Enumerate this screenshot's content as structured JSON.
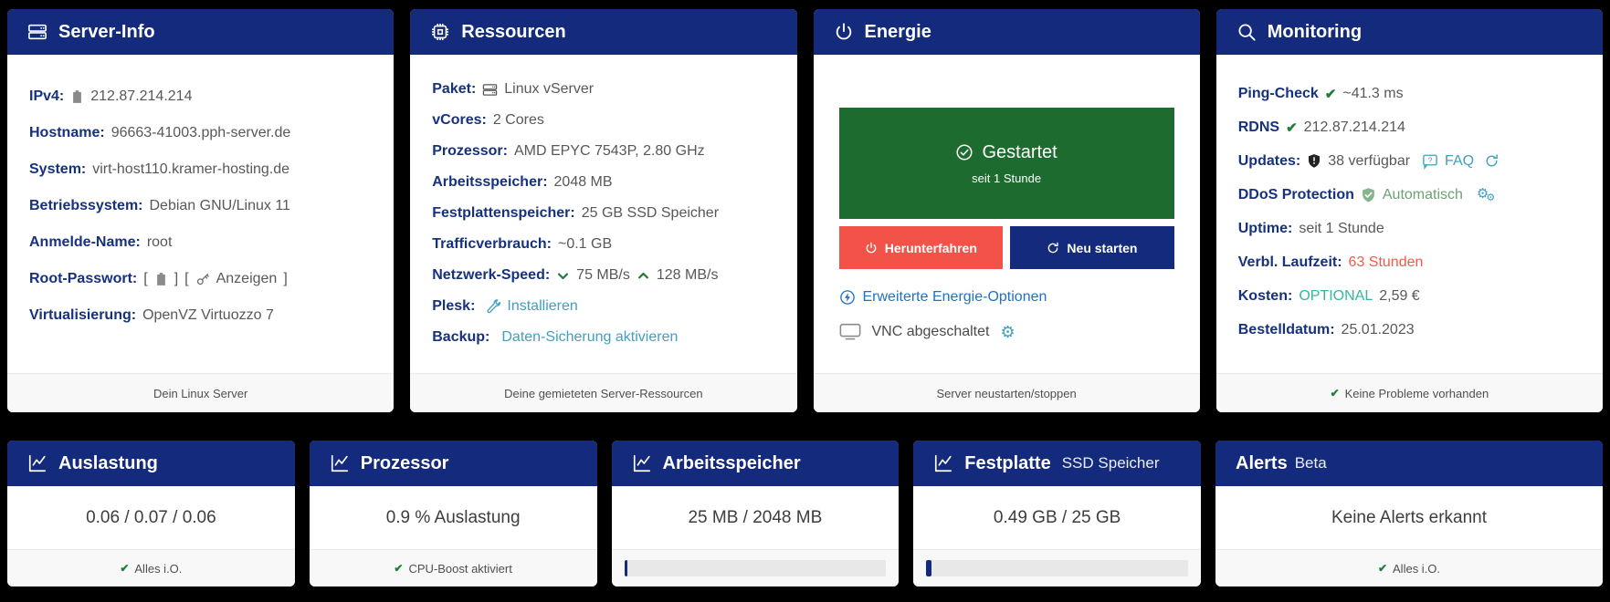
{
  "colors": {
    "header_navy": "#132a7d",
    "label_navy": "#16317d",
    "teal_link": "#3fa0bf",
    "blue_link": "#2271c3",
    "success_green": "#1e7e34",
    "status_box_green": "#1e6b2f",
    "danger_red": "#f25247",
    "warning_red": "#f2594b",
    "optional_teal": "#35b79b"
  },
  "top_cards": {
    "server_info": {
      "title": "Server-Info",
      "icon": "server-stack-icon",
      "rows": [
        {
          "label": "IPv4:",
          "icon": "clipboard-icon",
          "value": "212.87.214.214"
        },
        {
          "label": "Hostname:",
          "value": "96663-41003.pph-server.de"
        },
        {
          "label": "System:",
          "value": "virt-host110.kramer-hosting.de"
        },
        {
          "label": "Betriebssystem:",
          "value": "Debian GNU/Linux 11"
        },
        {
          "label": "Anmelde-Name:",
          "value": "root"
        },
        {
          "label": "Root-Passwort:",
          "bracket_open": "[",
          "bracket_close": "]",
          "copy_icon": "clipboard-icon",
          "key_icon": "key-icon",
          "show_label": "Anzeigen"
        },
        {
          "label": "Virtualisierung:",
          "value": "OpenVZ Virtuozzo 7"
        }
      ],
      "footer": "Dein Linux Server"
    },
    "ressourcen": {
      "title": "Ressourcen",
      "icon": "cpu-chip-icon",
      "rows": [
        {
          "label": "Paket:",
          "icon": "server-stack-icon",
          "value": "Linux vServer"
        },
        {
          "label": "vCores:",
          "value": "2 Cores"
        },
        {
          "label": "Prozessor:",
          "value": "AMD EPYC 7543P, 2.80 GHz"
        },
        {
          "label": "Arbeitsspeicher:",
          "value": "2048 MB"
        },
        {
          "label": "Festplattenspeicher:",
          "value": "25 GB SSD Speicher"
        },
        {
          "label": "Trafficverbrauch:",
          "value": "~0.1 GB"
        },
        {
          "label": "Netzwerk-Speed:",
          "down_icon": "chevron-down-icon",
          "down_value": "75 MB/s",
          "up_icon": "chevron-up-icon",
          "up_value": "128 MB/s"
        },
        {
          "label": "Plesk:",
          "icon": "wrench-icon",
          "link": "Installieren"
        },
        {
          "label": "Backup:",
          "link": "Daten-Sicherung aktivieren"
        }
      ],
      "footer": "Deine gemieteten Server-Ressourcen"
    },
    "energie": {
      "title": "Energie",
      "icon": "power-icon",
      "status": {
        "state": "Gestartet",
        "since": "seit 1 Stunde",
        "icon": "circle-check-icon"
      },
      "buttons": {
        "shutdown": "Herunterfahren",
        "restart": "Neu starten"
      },
      "advanced_link": "Erweiterte Energie-Optionen",
      "vnc_label": "VNC abgeschaltet",
      "footer": "Server neustarten/stoppen"
    },
    "monitoring": {
      "title": "Monitoring",
      "icon": "search-icon",
      "rows": {
        "ping": {
          "label": "Ping-Check",
          "check": "✔",
          "value": "~41.3 ms"
        },
        "rdns": {
          "label": "RDNS",
          "check": "✔",
          "value": "212.87.214.214"
        },
        "updates": {
          "label": "Updates:",
          "icon": "shield-exclamation-icon",
          "value": "38 verfügbar",
          "faq_label": "FAQ",
          "faq_icon": "faq-bubble-icon",
          "refresh_icon": "refresh-icon"
        },
        "ddos": {
          "label": "DDoS Protection",
          "icon": "shield-check-icon",
          "value": "Automatisch",
          "gears": "⚙",
          "gears_small": "⚙"
        },
        "uptime": {
          "label": "Uptime:",
          "value": "seit 1 Stunde"
        },
        "laufzeit": {
          "label": "Verbl. Laufzeit:",
          "value": "63 Stunden"
        },
        "kosten": {
          "label": "Kosten:",
          "badge": "OPTIONAL",
          "value": "2,59 €"
        },
        "bestelldatum": {
          "label": "Bestelldatum:",
          "value": "25.01.2023"
        }
      },
      "footer_check": "✔",
      "footer": "Keine Probleme vorhanden"
    }
  },
  "bottom_cards": [
    {
      "title": "Auslastung",
      "icon": "line-chart-icon",
      "value": "0.06 / 0.07 / 0.06",
      "footer_check": "✔",
      "footer": "Alles i.O."
    },
    {
      "title": "Prozessor",
      "icon": "line-chart-icon",
      "value": "0.9 % Auslastung",
      "footer_check": "✔",
      "footer": "CPU-Boost aktiviert"
    },
    {
      "title": "Arbeitsspeicher",
      "icon": "line-chart-icon",
      "value": "25 MB / 2048 MB",
      "progress_percent": 1.2
    },
    {
      "title": "Festplatte",
      "subtitle": "SSD Speicher",
      "icon": "line-chart-icon",
      "value": "0.49 GB / 25 GB",
      "progress_percent": 2
    },
    {
      "title": "Alerts",
      "subtitle": "Beta",
      "value": "Keine Alerts erkannt",
      "footer_check": "✔",
      "footer": "Alles i.O."
    }
  ]
}
